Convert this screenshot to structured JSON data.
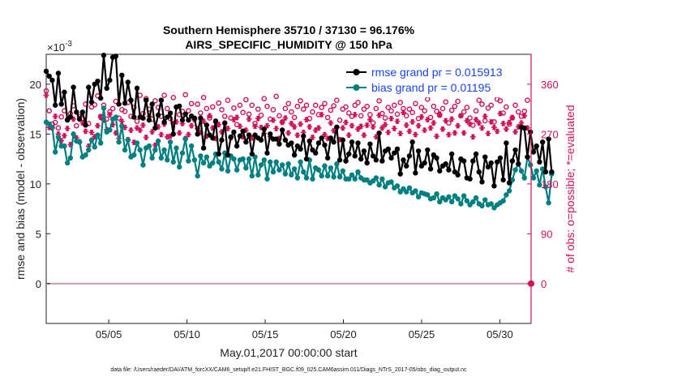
{
  "colors": {
    "rmse": "#000000",
    "bias": "#007f80",
    "obs": "#d0105a",
    "legend_text": "#1a44e6",
    "zero_line": "#c9a0a8"
  },
  "chart_data": {
    "type": "line",
    "title": "Southern Hemisphere 35710 / 37130 = 96.176%",
    "subtitle": "AIRS_SPECIFIC_HUMIDITY @ 150 hPa",
    "exponent_label": "×10",
    "exponent_power": "-3",
    "xlabel": "May.01,2017 00:00:00 start",
    "ylabel": "rmse and bias (model - observation)",
    "y2label": "# of obs: o=possible; *=evaluated",
    "xlim": [
      1,
      32
    ],
    "ylim": [
      -4,
      23
    ],
    "y2lim": [
      -72,
      414
    ],
    "grid": false,
    "legend_position": "top-right",
    "x_ticks": [
      5,
      10,
      15,
      20,
      25,
      30
    ],
    "x_tick_labels": [
      "05/05",
      "05/10",
      "05/15",
      "05/20",
      "05/25",
      "05/30"
    ],
    "y_ticks": [
      0,
      5,
      10,
      15,
      20
    ],
    "y_tick_labels": [
      "0",
      "5",
      "10",
      "15",
      "20"
    ],
    "y2_ticks": [
      0,
      90,
      180,
      270,
      360
    ],
    "y2_tick_labels": [
      "0",
      "90",
      "180",
      "270",
      "360"
    ],
    "series": [
      {
        "name": "rmse",
        "legend": "rmse grand pr = 0.015913",
        "values": [
          21.3,
          20.8,
          20.4,
          17.9,
          21.1,
          18.0,
          19.2,
          16.4,
          16.7,
          19.7,
          17.2,
          16.5,
          17.2,
          15.9,
          19.7,
          18.2,
          20.0,
          20.3,
          18.6,
          22.9,
          19.6,
          20.4,
          22.7,
          22.8,
          18.0,
          20.9,
          18.1,
          20.2,
          18.4,
          16.7,
          19.6,
          16.7,
          16.6,
          18.4,
          16.4,
          18.0,
          15.6,
          16.9,
          18.4,
          16.2,
          16.7,
          17.1,
          15.0,
          17.7,
          17.8,
          16.4,
          17.0,
          16.4,
          16.8,
          16.6,
          15.0,
          16.6,
          13.6,
          15.9,
          14.9,
          14.6,
          16.3,
          13.0,
          14.4,
          16.1,
          12.9,
          14.7,
          15.2,
          13.8,
          14.8,
          15.3,
          14.2,
          14.9,
          13.0,
          14.9,
          14.6,
          14.4,
          15.5,
          13.1,
          15.0,
          14.5,
          14.5,
          14.0,
          15.4,
          14.4,
          13.9,
          14.1,
          12.9,
          13.8,
          13.5,
          14.8,
          12.5,
          14.3,
          13.4,
          13.1,
          14.1,
          14.6,
          13.9,
          12.6,
          14.6,
          14.2,
          15.7,
          12.4,
          14.4,
          12.3,
          13.0,
          14.2,
          12.8,
          14.1,
          12.5,
          13.3,
          12.1,
          14.0,
          12.8,
          12.4,
          15.1,
          12.3,
          13.3,
          13.5,
          12.6,
          13.1,
          13.5,
          11.0,
          12.4,
          11.8,
          12.8,
          14.2,
          11.1,
          13.3,
          11.8,
          12.1,
          13.4,
          11.5,
          12.9,
          12.6,
          11.3,
          11.8,
          12.0,
          11.4,
          13.0,
          11.2,
          10.9,
          12.5,
          12.3,
          10.6,
          10.5,
          12.3,
          13.0,
          11.2,
          10.2,
          12.7,
          11.7,
          12.1,
          9.8,
          12.2,
          12.6,
          10.4,
          14.1,
          10.1,
          12.3,
          13.4,
          12.0,
          15.7,
          15.6,
          12.7,
          15.2,
          13.2,
          13.8,
          12.2,
          14.2,
          11.2,
          14.5,
          11.2
        ],
        "x_start": 1.0,
        "x_step": 0.1935
      },
      {
        "name": "bias",
        "legend": "bias grand pr = 0.01195",
        "values": [
          16.2,
          16.0,
          15.7,
          13.2,
          14.7,
          13.8,
          13.8,
          12.1,
          12.6,
          15.0,
          14.3,
          14.2,
          12.7,
          12.9,
          13.4,
          14.4,
          13.7,
          14.9,
          14.1,
          17.6,
          15.2,
          15.4,
          16.5,
          16.7,
          14.2,
          15.8,
          13.4,
          14.4,
          12.7,
          12.9,
          14.1,
          13.4,
          11.9,
          13.6,
          13.8,
          12.6,
          13.4,
          14.3,
          12.6,
          13.4,
          12.4,
          14.2,
          12.2,
          13.6,
          11.7,
          13.1,
          14.5,
          12.3,
          13.8,
          12.4,
          10.8,
          12.8,
          12.1,
          12.7,
          11.8,
          12.1,
          13.0,
          12.2,
          11.5,
          13.1,
          11.3,
          12.8,
          12.5,
          11.4,
          12.4,
          12.5,
          11.6,
          12.5,
          10.8,
          12.7,
          10.9,
          11.9,
          12.4,
          10.5,
          12.2,
          11.2,
          12.2,
          11.4,
          11.9,
          11.0,
          12.0,
          10.9,
          11.5,
          10.6,
          12.2,
          11.2,
          10.6,
          12.4,
          10.5,
          11.6,
          11.4,
          10.8,
          11.8,
          10.8,
          11.6,
          10.7,
          12.0,
          10.7,
          11.3,
          10.5,
          10.5,
          10.9,
          10.5,
          11.2,
          10.6,
          10.4,
          10.4,
          10.1,
          10.3,
          10.6,
          9.9,
          10.5,
          9.7,
          10.1,
          10.2,
          9.6,
          9.8,
          9.2,
          9.5,
          9.2,
          9.6,
          9.1,
          9.3,
          8.7,
          9.1,
          9.0,
          8.9,
          8.5,
          8.6,
          9.0,
          8.2,
          8.6,
          8.4,
          8.7,
          8.2,
          8.8,
          8.5,
          8.0,
          8.8,
          8.3,
          7.9,
          8.2,
          8.6,
          8.0,
          7.8,
          8.4,
          7.9,
          8.0,
          7.6,
          7.9,
          8.1,
          8.3,
          8.9,
          9.3,
          10.4,
          11.4,
          12.0,
          11.3,
          10.6,
          12.7,
          11.9,
          10.6,
          11.3,
          9.9,
          11.5,
          9.7,
          8.1,
          11.0
        ],
        "x_start": 1.0,
        "x_step": 0.1935
      },
      {
        "name": "obs_possible",
        "marker": "o",
        "axis": "right",
        "values": [
          348,
          312,
          288,
          291,
          281,
          301,
          312,
          296,
          307,
          321,
          285,
          302,
          298,
          324,
          289,
          319,
          323,
          339,
          302,
          322,
          297,
          310,
          316,
          329,
          299,
          314,
          311,
          327,
          302,
          318,
          293,
          340,
          307,
          334,
          315,
          297,
          330,
          318,
          302,
          340,
          316,
          298,
          336,
          319,
          305,
          311,
          341,
          312,
          325,
          297,
          324,
          308,
          336,
          316,
          299,
          319,
          292,
          326,
          314,
          302,
          331,
          299,
          317,
          287,
          322,
          309,
          332,
          306,
          322,
          289,
          315,
          304,
          334,
          320,
          297,
          314,
          338,
          303,
          292,
          316,
          325,
          310,
          300,
          320,
          330,
          315,
          322,
          298,
          310,
          322,
          305,
          318,
          325,
          300,
          313,
          321,
          331,
          295,
          315,
          319,
          308,
          302,
          322,
          327,
          303,
          315,
          320,
          305,
          290,
          316,
          330,
          307,
          299,
          318,
          312,
          322,
          306,
          327,
          316,
          303,
          315,
          309,
          325,
          298,
          318,
          312,
          333,
          300,
          320,
          311,
          304,
          316,
          328,
          290,
          313,
          320,
          329,
          303,
          310,
          318,
          299,
          286,
          312,
          331,
          324,
          294,
          317,
          322,
          292,
          333,
          330,
          308,
          319,
          288,
          299,
          322,
          310,
          302,
          311,
          331
        ],
        "x_start": 1.0,
        "x_step": 0.1935
      },
      {
        "name": "obs_evaluated",
        "marker": "*",
        "axis": "right",
        "values": [
          340,
          282,
          281,
          302,
          270,
          258,
          267,
          280,
          251,
          297,
          263,
          256,
          290,
          275,
          248,
          273,
          265,
          285,
          300,
          295,
          278,
          305,
          287,
          272,
          262,
          293,
          282,
          260,
          277,
          255,
          281,
          277,
          286,
          264,
          302,
          274,
          250,
          283,
          269,
          288,
          265,
          266,
          289,
          292,
          272,
          289,
          262,
          269,
          285,
          296,
          280,
          273,
          293,
          266,
          303,
          281,
          262,
          287,
          274,
          290,
          280,
          263,
          296,
          300,
          284,
          265,
          277,
          297,
          263,
          284,
          298,
          282,
          271,
          285,
          265,
          295,
          280,
          262,
          291,
          299,
          272,
          289,
          283,
          268,
          288,
          273,
          296,
          283,
          264,
          277,
          281,
          305,
          269,
          262,
          290,
          276,
          282,
          260,
          281,
          291,
          268,
          285,
          305,
          279,
          284,
          268,
          286,
          296,
          283,
          265,
          304,
          281,
          287,
          273,
          298,
          280,
          293,
          271,
          309,
          286,
          275,
          292,
          269,
          285,
          301,
          277,
          296,
          281,
          290,
          266,
          306,
          279,
          294,
          269,
          297,
          272,
          285,
          303,
          272,
          294,
          288,
          265,
          296,
          290,
          281,
          302,
          271,
          292,
          282,
          275,
          307,
          289,
          279,
          291,
          300,
          274,
          283,
          290,
          303,
          281
        ],
        "x_start": 1.0,
        "x_step": 0.1935,
        "extra_point": {
          "x": 32,
          "value": 0
        }
      }
    ]
  },
  "footer": {
    "text": "data file: /Users/raeder/DAI/ATM_forcXX/CAM6_setup/f.e21.FHIST_BGC.f09_025.CAM6assim.011/Diags_NTrS_2017-05/obs_diag_output.nc"
  }
}
